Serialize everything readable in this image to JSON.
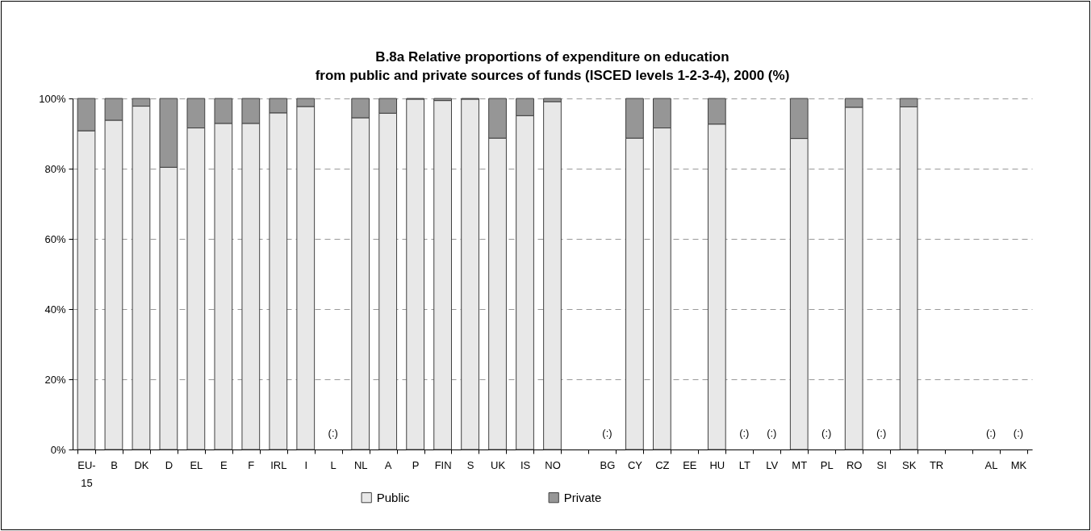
{
  "chart_data": {
    "type": "bar",
    "title": "B.8a  Relative proportions of expenditure on education\nfrom public and private sources of funds (ISCED levels 1-2-3-4), 2000 (%)",
    "categories": [
      "EU-15",
      "B",
      "DK",
      "D",
      "EL",
      "E",
      "F",
      "IRL",
      "I",
      "L",
      "NL",
      "A",
      "P",
      "FIN",
      "S",
      "UK",
      "IS",
      "NO",
      null,
      "BG",
      "CY",
      "CZ",
      "EE",
      "HU",
      "LT",
      "LV",
      "MT",
      "PL",
      "RO",
      "SI",
      "SK",
      "TR",
      null,
      "AL",
      "MK"
    ],
    "series": [
      {
        "name": "Public",
        "color": "#e8e8e8",
        "values": [
          90.8,
          93.8,
          97.8,
          80.4,
          91.6,
          92.9,
          92.9,
          95.9,
          97.7,
          null,
          94.5,
          95.8,
          99.8,
          99.4,
          99.8,
          88.7,
          95.1,
          99.1,
          null,
          null,
          88.7,
          91.6,
          null,
          92.7,
          null,
          null,
          88.6,
          null,
          97.5,
          null,
          97.6,
          null,
          null,
          null,
          null
        ],
        "value_labels": [
          null,
          null,
          null,
          null,
          null,
          null,
          null,
          null,
          null,
          "(:)",
          null,
          null,
          null,
          null,
          null,
          null,
          null,
          null,
          null,
          "(:)",
          null,
          null,
          null,
          null,
          "(:)",
          "(:)",
          null,
          "(:)",
          null,
          "(:)",
          null,
          null,
          null,
          "(:)",
          "(:)"
        ]
      },
      {
        "name": "Private",
        "color": "#969696",
        "values": [
          9.2,
          6.2,
          2.2,
          19.6,
          8.4,
          7.1,
          7.1,
          4.1,
          2.3,
          null,
          5.5,
          4.2,
          0.2,
          0.6,
          0.2,
          11.3,
          4.9,
          0.9,
          null,
          null,
          11.3,
          8.4,
          null,
          7.3,
          null,
          null,
          11.4,
          null,
          2.5,
          null,
          2.4,
          null,
          null,
          null,
          null
        ]
      }
    ],
    "stacked": true,
    "ylim": [
      0,
      100
    ],
    "yticks": [
      {
        "value": 0,
        "label": "0%"
      },
      {
        "value": 20,
        "label": "20%"
      },
      {
        "value": 40,
        "label": "40%"
      },
      {
        "value": 60,
        "label": "60%"
      },
      {
        "value": 80,
        "label": "80%"
      },
      {
        "value": 100,
        "label": "100%"
      }
    ],
    "grid": "y",
    "legend": "bottom"
  }
}
